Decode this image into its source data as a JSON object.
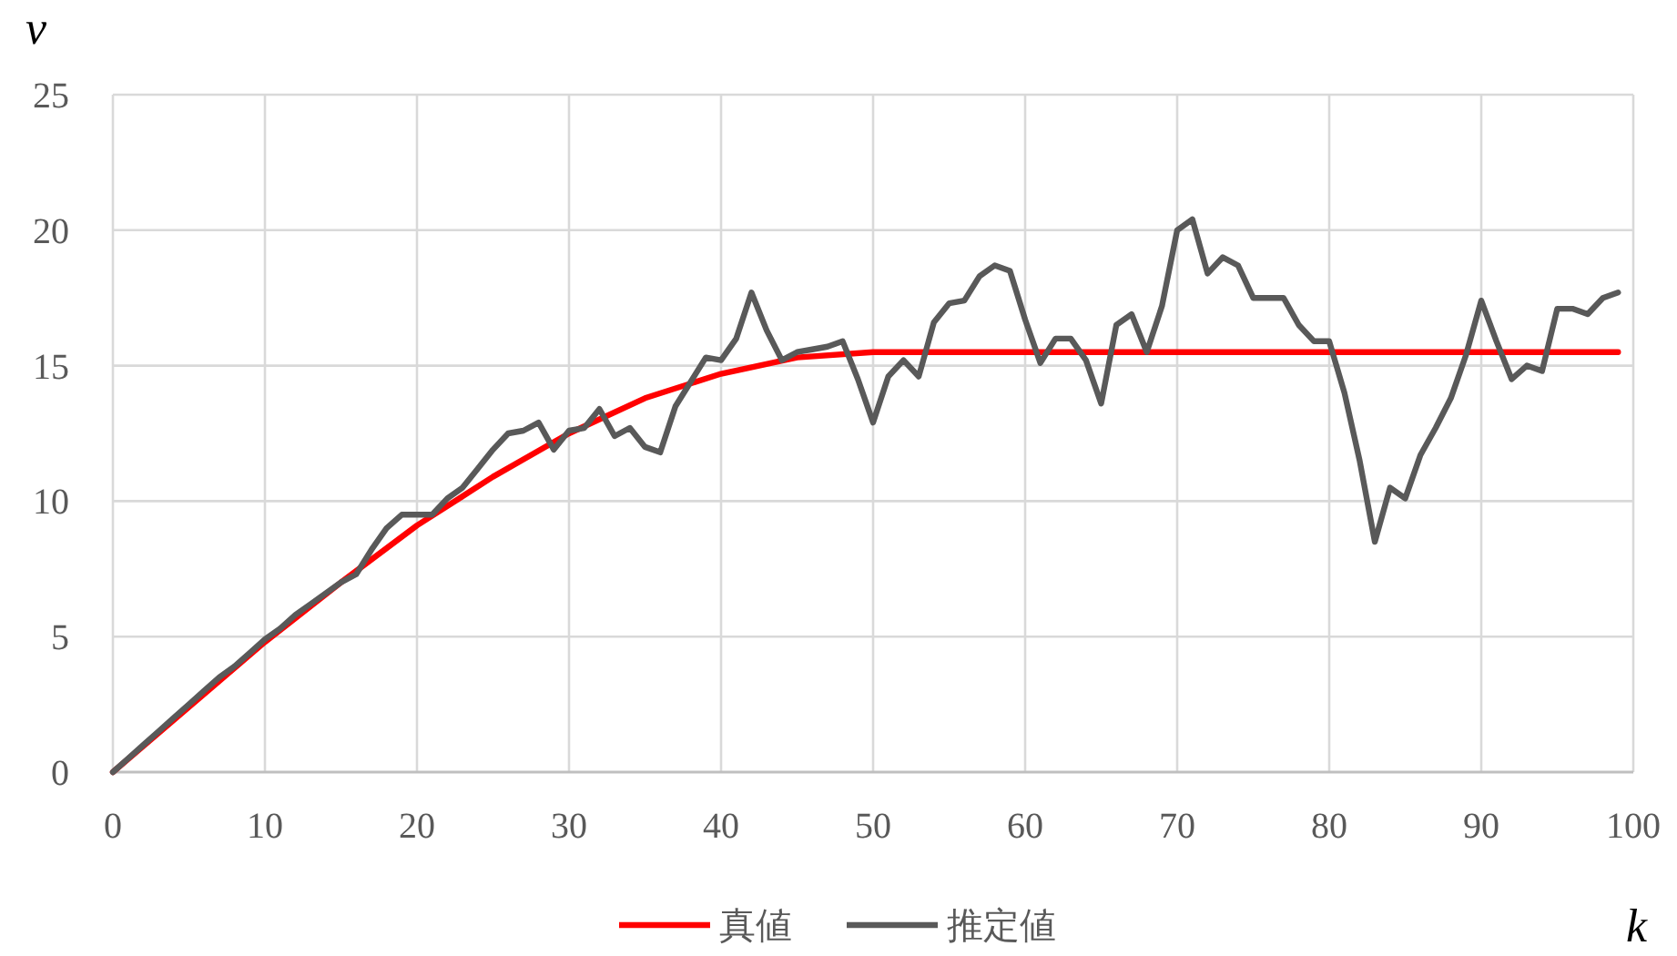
{
  "chart_data": {
    "type": "line",
    "xlabel": "k",
    "ylabel": "v",
    "xlim": [
      0,
      100
    ],
    "ylim": [
      0,
      25
    ],
    "xticks": [
      0,
      10,
      20,
      30,
      40,
      50,
      60,
      70,
      80,
      90,
      100
    ],
    "yticks": [
      0,
      5,
      10,
      15,
      20,
      25
    ],
    "grid": true,
    "legend": "bottom",
    "line_style": "solid",
    "marker": "none",
    "series": [
      {
        "name": "真値",
        "color": "#ff0000",
        "x": [
          0,
          5,
          10,
          15,
          20,
          25,
          30,
          35,
          40,
          45,
          50,
          99
        ],
        "values": [
          0,
          2.4,
          4.8,
          7.0,
          9.1,
          10.9,
          12.5,
          13.8,
          14.7,
          15.3,
          15.5,
          15.5
        ]
      },
      {
        "name": "推定値",
        "color": "#595959",
        "x": [
          0,
          1,
          2,
          3,
          4,
          5,
          6,
          7,
          8,
          9,
          10,
          11,
          12,
          13,
          14,
          15,
          16,
          17,
          18,
          19,
          20,
          21,
          22,
          23,
          24,
          25,
          26,
          27,
          28,
          29,
          30,
          31,
          32,
          33,
          34,
          35,
          36,
          37,
          38,
          39,
          40,
          41,
          42,
          43,
          44,
          45,
          46,
          47,
          48,
          49,
          50,
          51,
          52,
          53,
          54,
          55,
          56,
          57,
          58,
          59,
          60,
          61,
          62,
          63,
          64,
          65,
          66,
          67,
          68,
          69,
          70,
          71,
          72,
          73,
          74,
          75,
          76,
          77,
          78,
          79,
          80,
          81,
          82,
          83,
          84,
          85,
          86,
          87,
          88,
          89,
          90,
          91,
          92,
          93,
          94,
          95,
          96,
          97,
          98,
          99
        ],
        "values": [
          0,
          0.5,
          1.0,
          1.5,
          2.0,
          2.5,
          3.0,
          3.5,
          3.9,
          4.4,
          4.9,
          5.3,
          5.8,
          6.2,
          6.6,
          7.0,
          7.3,
          8.2,
          9.0,
          9.5,
          9.5,
          9.5,
          10.1,
          10.5,
          11.2,
          11.9,
          12.5,
          12.6,
          12.9,
          11.9,
          12.6,
          12.7,
          13.4,
          12.4,
          12.7,
          12.0,
          11.8,
          13.5,
          14.4,
          15.3,
          15.2,
          16.0,
          17.7,
          16.3,
          15.2,
          15.5,
          15.6,
          15.7,
          15.9,
          14.5,
          12.9,
          14.6,
          15.2,
          14.6,
          16.6,
          17.3,
          17.4,
          18.3,
          18.7,
          18.5,
          16.7,
          15.1,
          16.0,
          16.0,
          15.2,
          13.6,
          16.5,
          16.9,
          15.5,
          17.2,
          20.0,
          20.4,
          18.4,
          19.0,
          18.7,
          17.5,
          17.5,
          17.5,
          16.5,
          15.9,
          15.9,
          14.0,
          11.5,
          8.5,
          10.5,
          10.1,
          11.7,
          12.7,
          13.8,
          15.4,
          17.4,
          15.9,
          14.5,
          15.0,
          14.8,
          17.1,
          17.1,
          16.9,
          17.5,
          17.7
        ]
      }
    ]
  }
}
